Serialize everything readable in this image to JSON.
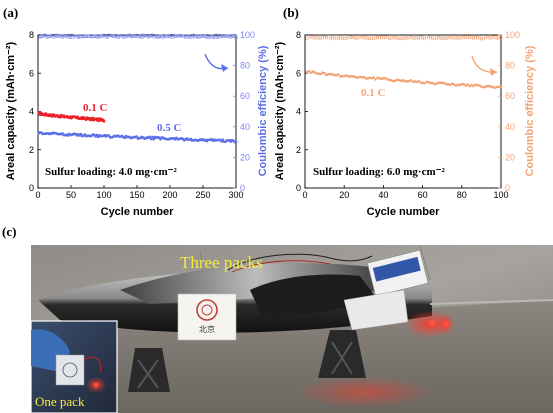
{
  "charts": [
    {
      "panel": "(a)",
      "type": "scatter",
      "xlabel": "Cycle number",
      "ylabel": "Areal capacity (mAh·cm⁻²)",
      "ylabel2": "Coulombic efficiency (%)",
      "xlim": [
        0,
        300
      ],
      "ylim": [
        0,
        8
      ],
      "y2lim": [
        0,
        100
      ],
      "xticks": [
        "0",
        "50",
        "100",
        "150",
        "200",
        "250",
        "300"
      ],
      "yticks": [
        "0",
        "2",
        "4",
        "6",
        "8"
      ],
      "y2ticks": [
        "0",
        "20",
        "40",
        "60",
        "80",
        "100"
      ],
      "annotation": "Sulfur loading: 4.0 mg·cm⁻²",
      "series": [
        {
          "name": "0.1 C",
          "color": "#e8232a",
          "x_start": 1,
          "x_end": 100,
          "capacity_start": 3.9,
          "capacity_end": 3.55
        },
        {
          "name": "0.5 C",
          "color": "#5b6ee6",
          "x_start": 1,
          "x_end": 300,
          "capacity_start": 2.9,
          "capacity_end": 2.45,
          "coulombic_efficiency": 99.5
        }
      ],
      "ce_color": "#7b86ec"
    },
    {
      "panel": "(b)",
      "type": "scatter",
      "xlabel": "Cycle number",
      "ylabel": "Areal capacity (mAh·cm⁻²)",
      "ylabel2": "Coulombic efficiency (%)",
      "xlim": [
        0,
        100
      ],
      "ylim": [
        0,
        8
      ],
      "y2lim": [
        0,
        100
      ],
      "xticks": [
        "0",
        "20",
        "40",
        "60",
        "80",
        "100"
      ],
      "yticks": [
        "0",
        "2",
        "4",
        "6",
        "8"
      ],
      "y2ticks": [
        "0",
        "20",
        "40",
        "60",
        "80",
        "100"
      ],
      "annotation": "Sulfur loading: 6.0 mg·cm⁻²",
      "series": [
        {
          "name": "0.1 C",
          "color": "#f2a477",
          "x_start": 1,
          "x_end": 100,
          "capacity_start": 6.1,
          "capacity_end": 5.25,
          "coulombic_efficiency": 98.5
        }
      ],
      "ce_color": "#f2a477"
    }
  ],
  "photo": {
    "panel": "(c)",
    "main_caption": "Three packs",
    "inset_caption": "One pack",
    "boat_brand": "北京"
  }
}
